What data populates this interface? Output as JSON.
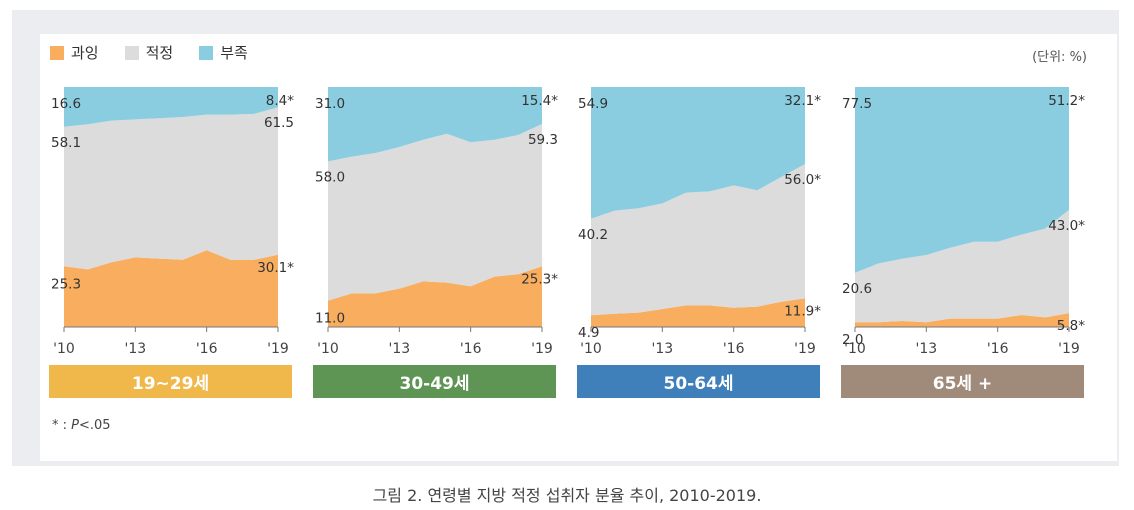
{
  "legend": [
    {
      "label": "과잉",
      "color": "#f9ad5f"
    },
    {
      "label": "적정",
      "color": "#dcdcdc"
    },
    {
      "label": "부족",
      "color": "#8acde1"
    }
  ],
  "unit": "(단위: %)",
  "footnote": {
    "star": "* : ",
    "p": "P",
    "rest": "<.05"
  },
  "caption": "그림 2. 연령별 지방 적정 섭취자 분율 추이, 2010-2019.",
  "chart_data": [
    {
      "type": "area",
      "title": "19~29세",
      "bar_color": "#f0b84a",
      "x": [
        2010,
        2011,
        2012,
        2013,
        2014,
        2015,
        2016,
        2017,
        2018,
        2019
      ],
      "x_ticks": [
        "'10",
        "'13",
        "'16",
        "'19"
      ],
      "ylim": [
        0,
        100
      ],
      "series": [
        {
          "name": "과잉",
          "color": "#f9ad5f",
          "values": [
            25.3,
            24,
            27,
            29,
            28.5,
            28,
            32,
            28,
            28,
            30.1
          ]
        },
        {
          "name": "적정",
          "color": "#dcdcdc",
          "values": [
            58.1,
            60.5,
            59,
            57.5,
            58.5,
            59.5,
            56.5,
            60.5,
            60.8,
            61.5
          ]
        },
        {
          "name": "부족",
          "color": "#8acde1",
          "values": [
            16.6,
            15.5,
            14,
            13.5,
            13,
            12.5,
            11.5,
            11.5,
            11.2,
            8.4
          ]
        }
      ],
      "labels": {
        "left": {
          "부족": "16.6",
          "적정": "58.1",
          "과잉": "25.3"
        },
        "right": {
          "부족": "8.4*",
          "적정": "61.5",
          "과잉": "30.1*"
        }
      }
    },
    {
      "type": "area",
      "title": "30-49세",
      "bar_color": "#5e9454",
      "x": [
        2010,
        2011,
        2012,
        2013,
        2014,
        2015,
        2016,
        2017,
        2018,
        2019
      ],
      "x_ticks": [
        "'10",
        "'13",
        "'16",
        "'19"
      ],
      "ylim": [
        0,
        100
      ],
      "series": [
        {
          "name": "과잉",
          "color": "#f9ad5f",
          "values": [
            11.0,
            14,
            14,
            16,
            19,
            18.5,
            17,
            21,
            22,
            25.3
          ]
        },
        {
          "name": "적정",
          "color": "#dcdcdc",
          "values": [
            58.0,
            57,
            58.5,
            59,
            59,
            62,
            60,
            57,
            58,
            59.3
          ]
        },
        {
          "name": "부족",
          "color": "#8acde1",
          "values": [
            31.0,
            29,
            27.5,
            25,
            22,
            19.5,
            23,
            22,
            20,
            15.4
          ]
        }
      ],
      "labels": {
        "left": {
          "부족": "31.0",
          "적정": "58.0",
          "과잉": "11.0"
        },
        "right": {
          "부족": "15.4*",
          "적정": "59.3",
          "과잉": "25.3*"
        }
      }
    },
    {
      "type": "area",
      "title": "50-64세",
      "bar_color": "#3f7fba",
      "x": [
        2010,
        2011,
        2012,
        2013,
        2014,
        2015,
        2016,
        2017,
        2018,
        2019
      ],
      "x_ticks": [
        "'10",
        "'13",
        "'16",
        "'19"
      ],
      "ylim": [
        0,
        100
      ],
      "series": [
        {
          "name": "과잉",
          "color": "#f9ad5f",
          "values": [
            4.9,
            5.5,
            6,
            7.5,
            9,
            9,
            8,
            8.5,
            10.5,
            11.9
          ]
        },
        {
          "name": "적정",
          "color": "#dcdcdc",
          "values": [
            40.2,
            43,
            43.5,
            44,
            47,
            47.5,
            51,
            48.5,
            52,
            56.0
          ]
        },
        {
          "name": "부족",
          "color": "#8acde1",
          "values": [
            54.9,
            51.5,
            50.5,
            48.5,
            44,
            43.5,
            41,
            43,
            37.5,
            32.1
          ]
        }
      ],
      "labels": {
        "left": {
          "부족": "54.9",
          "적정": "40.2",
          "과잉": "4.9"
        },
        "right": {
          "부족": "32.1*",
          "적정": "56.0*",
          "과잉": "11.9*"
        }
      }
    },
    {
      "type": "area",
      "title": "65세 +",
      "bar_color": "#a08a7a",
      "x": [
        2010,
        2011,
        2012,
        2013,
        2014,
        2015,
        2016,
        2017,
        2018,
        2019
      ],
      "x_ticks": [
        "'10",
        "'13",
        "'16",
        "'19"
      ],
      "ylim": [
        0,
        100
      ],
      "series": [
        {
          "name": "과잉",
          "color": "#f9ad5f",
          "values": [
            2.0,
            2.0,
            2.5,
            2.0,
            3.5,
            3.5,
            3.5,
            5.0,
            4.0,
            5.8
          ]
        },
        {
          "name": "적정",
          "color": "#dcdcdc",
          "values": [
            20.6,
            24.5,
            26,
            28,
            29.5,
            32,
            32,
            33.5,
            37,
            43.0
          ]
        },
        {
          "name": "부족",
          "color": "#8acde1",
          "values": [
            77.5,
            73.5,
            71.5,
            70,
            67,
            64.5,
            64.5,
            61.5,
            59,
            51.2
          ]
        }
      ],
      "labels": {
        "left": {
          "부족": "77.5",
          "적정": "20.6",
          "과잉": "2.0"
        },
        "right": {
          "부족": "51.2*",
          "적정": "43.0*",
          "과잉": "5.8*"
        }
      }
    }
  ]
}
